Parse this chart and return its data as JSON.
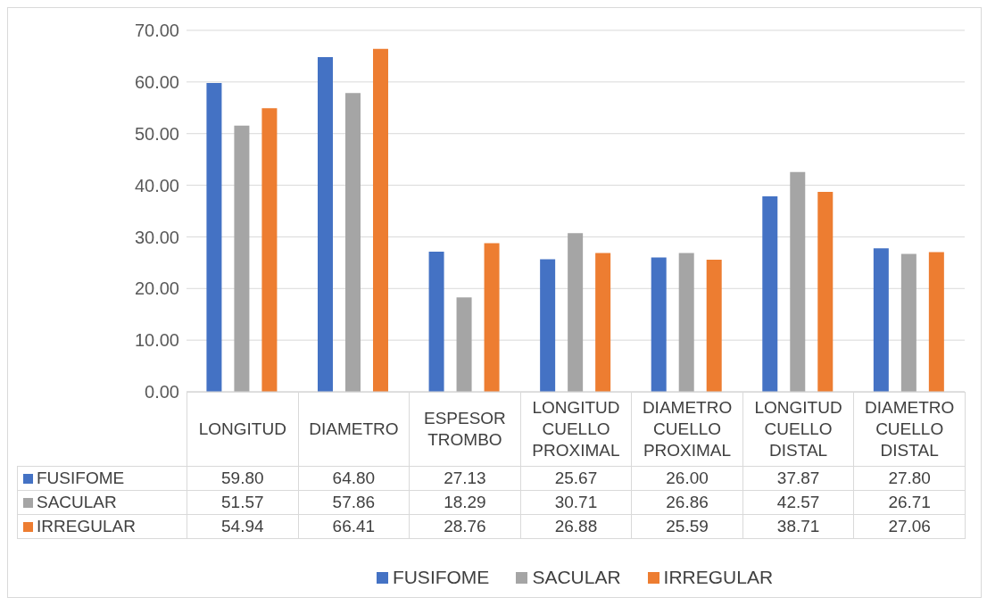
{
  "chart_data": {
    "type": "bar",
    "categories": [
      "LONGITUD",
      "DIAMETRO",
      "ESPESOR TROMBO",
      "LONGITUD CUELLO PROXIMAL",
      "DIAMETRO CUELLO PROXIMAL",
      "LONGITUD CUELLO DISTAL",
      "DIAMETRO CUELLO DISTAL"
    ],
    "series": [
      {
        "name": "FUSIFOME",
        "color": "#4472c4",
        "values": [
          59.8,
          64.8,
          27.13,
          25.67,
          26.0,
          37.87,
          27.8
        ],
        "value_labels": [
          "59.80",
          "64.80",
          "27.13",
          "25.67",
          "26.00",
          "37.87",
          "27.80"
        ]
      },
      {
        "name": "SACULAR",
        "color": "#a5a5a5",
        "values": [
          51.57,
          57.86,
          18.29,
          30.71,
          26.86,
          42.57,
          26.71
        ],
        "value_labels": [
          "51.57",
          "57.86",
          "18.29",
          "30.71",
          "26.86",
          "42.57",
          "26.71"
        ]
      },
      {
        "name": "IRREGULAR",
        "color": "#ed7d31",
        "values": [
          54.94,
          66.41,
          28.76,
          26.88,
          25.59,
          38.71,
          27.06
        ],
        "value_labels": [
          "54.94",
          "66.41",
          "28.76",
          "26.88",
          "25.59",
          "38.71",
          "27.06"
        ]
      }
    ],
    "ylim": [
      0,
      70
    ],
    "yticks": [
      {
        "value": 0,
        "label": "0.00"
      },
      {
        "value": 10,
        "label": "10.00"
      },
      {
        "value": 20,
        "label": "20.00"
      },
      {
        "value": 30,
        "label": "30.00"
      },
      {
        "value": 40,
        "label": "40.00"
      },
      {
        "value": 50,
        "label": "50.00"
      },
      {
        "value": 60,
        "label": "60.00"
      },
      {
        "value": 70,
        "label": "70.00"
      }
    ],
    "grid": "y",
    "legend": "bottom"
  }
}
